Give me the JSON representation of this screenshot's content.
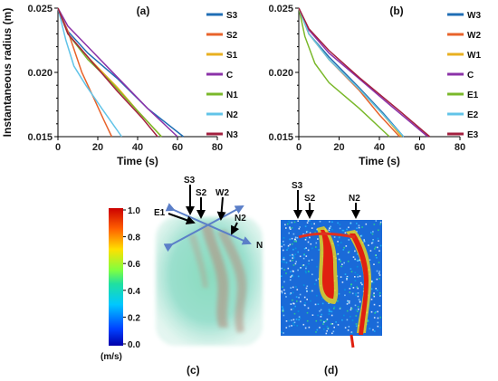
{
  "chart_data": [
    {
      "type": "line",
      "panel": "(a)",
      "xlabel": "Time (s)",
      "ylabel": "Instantaneous radius (m)",
      "xlim": [
        0,
        80
      ],
      "ylim": [
        0.015,
        0.025
      ],
      "xticks": [
        "0",
        "20",
        "40",
        "60",
        "80"
      ],
      "yticks": [
        "0.015",
        "0.020",
        "0.025"
      ],
      "legend_position": "right",
      "series": [
        {
          "name": "S3",
          "color": "#1f6eb5",
          "x": [
            0,
            5,
            15,
            30,
            45,
            63
          ],
          "y": [
            0.025,
            0.0232,
            0.0215,
            0.0195,
            0.0172,
            0.015
          ]
        },
        {
          "name": "S2",
          "color": "#e8622a",
          "x": [
            0,
            5,
            12,
            18,
            23,
            27
          ],
          "y": [
            0.025,
            0.0232,
            0.02,
            0.018,
            0.0163,
            0.015
          ]
        },
        {
          "name": "S1",
          "color": "#e8b020",
          "x": [
            0,
            5,
            15,
            30,
            40,
            52
          ],
          "y": [
            0.025,
            0.023,
            0.0212,
            0.0188,
            0.017,
            0.015
          ]
        },
        {
          "name": "C",
          "color": "#8b32a8",
          "x": [
            0,
            5,
            15,
            30,
            45,
            60
          ],
          "y": [
            0.025,
            0.0236,
            0.022,
            0.0196,
            0.0172,
            0.015
          ]
        },
        {
          "name": "N1",
          "color": "#7ab82a",
          "x": [
            0,
            5,
            15,
            25,
            40,
            52
          ],
          "y": [
            0.025,
            0.023,
            0.021,
            0.0195,
            0.017,
            0.015
          ]
        },
        {
          "name": "N2",
          "color": "#62c4e8",
          "x": [
            0,
            4,
            8,
            14,
            22,
            32
          ],
          "y": [
            0.025,
            0.0225,
            0.0205,
            0.019,
            0.0172,
            0.015
          ]
        },
        {
          "name": "N3",
          "color": "#a3203f",
          "x": [
            0,
            5,
            15,
            30,
            42,
            50
          ],
          "y": [
            0.025,
            0.023,
            0.0212,
            0.0185,
            0.0165,
            0.015
          ]
        }
      ]
    },
    {
      "type": "line",
      "panel": "(b)",
      "xlabel": "Time (s)",
      "ylabel": "",
      "xlim": [
        0,
        80
      ],
      "ylim": [
        0.015,
        0.025
      ],
      "xticks": [
        "0",
        "20",
        "40",
        "60",
        "80"
      ],
      "yticks": [
        "0.015",
        "0.020",
        "0.025"
      ],
      "legend_position": "right",
      "series": [
        {
          "name": "W3",
          "color": "#1f6eb5",
          "x": [
            0,
            5,
            15,
            30,
            42,
            52
          ],
          "y": [
            0.025,
            0.023,
            0.0212,
            0.0188,
            0.0168,
            0.015
          ]
        },
        {
          "name": "W2",
          "color": "#e8622a",
          "x": [
            0,
            5,
            15,
            30,
            40,
            50
          ],
          "y": [
            0.025,
            0.023,
            0.021,
            0.0186,
            0.0167,
            0.015
          ]
        },
        {
          "name": "W1",
          "color": "#e8b020",
          "x": [
            0,
            5,
            15,
            30,
            42,
            51
          ],
          "y": [
            0.025,
            0.023,
            0.021,
            0.0187,
            0.0167,
            0.015
          ]
        },
        {
          "name": "C",
          "color": "#8b32a8",
          "x": [
            0,
            5,
            15,
            30,
            45,
            64
          ],
          "y": [
            0.025,
            0.0233,
            0.0215,
            0.0195,
            0.0175,
            0.015
          ]
        },
        {
          "name": "E1",
          "color": "#7ab82a",
          "x": [
            0,
            3,
            8,
            15,
            30,
            45
          ],
          "y": [
            0.025,
            0.0228,
            0.0207,
            0.0192,
            0.0172,
            0.015
          ]
        },
        {
          "name": "E2",
          "color": "#62c4e8",
          "x": [
            0,
            5,
            15,
            30,
            42,
            52
          ],
          "y": [
            0.025,
            0.023,
            0.021,
            0.0187,
            0.0167,
            0.015
          ]
        },
        {
          "name": "E3",
          "color": "#a3203f",
          "x": [
            0,
            5,
            15,
            30,
            50,
            65
          ],
          "y": [
            0.025,
            0.0234,
            0.0217,
            0.0196,
            0.017,
            0.015
          ]
        }
      ]
    },
    {
      "type": "heatmap",
      "panel": "(c)",
      "colorbar": {
        "unit": "(m/s)",
        "ticks": [
          "1.0",
          "0.8",
          "0.6",
          "0.4",
          "0.2",
          "0.0"
        ]
      },
      "labels": [
        "S3",
        "S2",
        "W2",
        "E1",
        "N2",
        "N"
      ]
    },
    {
      "type": "heatmap",
      "panel": "(d)",
      "labels": [
        "S3",
        "S2",
        "N2"
      ]
    }
  ]
}
